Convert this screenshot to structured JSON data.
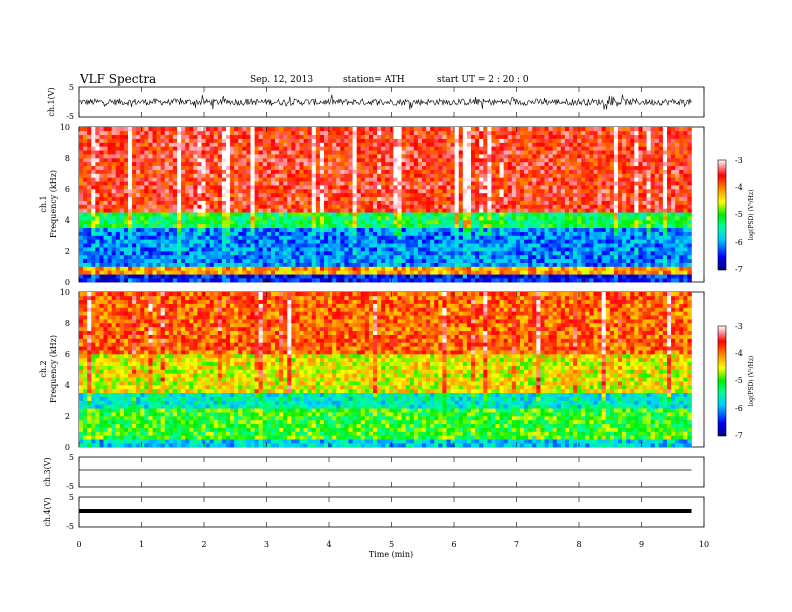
{
  "header": {
    "title": "VLF  Spectra",
    "date": "Sep. 12, 2013",
    "station": "station= ATH",
    "start": "start  UT  =   2  : 20 : 0"
  },
  "chart_data": [
    {
      "type": "line",
      "title": "",
      "ylabel": "ch.1(V)",
      "ylim": [
        -5,
        5
      ],
      "yticks": [
        "5",
        "-5"
      ],
      "series": [
        {
          "values_description_mean": 0.0,
          "amplitude_range": [
            -2.5,
            2.5
          ],
          "color": "#000000"
        }
      ]
    },
    {
      "type": "heatmap",
      "ylabel_channel": "ch.1",
      "ylabel": "Frequency  (kHz)",
      "ylim": [
        0,
        10
      ],
      "yticks": [
        "0",
        "2",
        "4",
        "6",
        "8",
        "10"
      ],
      "colorbar": {
        "label": "log(PSD) (V²/Hz)",
        "range": [
          -7,
          -3
        ],
        "ticks": [
          "-3",
          "-4",
          "-5",
          "-6",
          "-7"
        ],
        "colors": [
          "#000080",
          "#0000ff",
          "#00ccff",
          "#00ff99",
          "#00ee00",
          "#ffff00",
          "#ff8800",
          "#ff0000",
          "#ffffff"
        ]
      },
      "bands_khz": [
        {
          "from": 0,
          "to": 0.5,
          "log_psd": -6.5
        },
        {
          "from": 0.5,
          "to": 1,
          "log_psd": -4.2
        },
        {
          "from": 1,
          "to": 3.5,
          "log_psd": -6.1
        },
        {
          "from": 3.5,
          "to": 4.5,
          "log_psd": -5.2
        },
        {
          "from": 4.5,
          "to": 10,
          "log_psd": -3.6
        }
      ]
    },
    {
      "type": "heatmap",
      "ylabel_channel": "ch.2",
      "ylabel": "Frequency  (kHz)",
      "ylim": [
        0,
        10
      ],
      "yticks": [
        "0",
        "2",
        "4",
        "6",
        "8",
        "10"
      ],
      "colorbar": {
        "label": "log(PSD) (V²/Hz)",
        "range": [
          -7,
          -3
        ],
        "ticks": [
          "-3",
          "-4",
          "-5",
          "-6",
          "-7"
        ],
        "colors": [
          "#000080",
          "#0000ff",
          "#00ccff",
          "#00ff99",
          "#00ee00",
          "#ffff00",
          "#ff8800",
          "#ff0000",
          "#ffffff"
        ]
      },
      "bands_khz": [
        {
          "from": 0,
          "to": 0.5,
          "log_psd": -5.8
        },
        {
          "from": 0.5,
          "to": 2.5,
          "log_psd": -5.0
        },
        {
          "from": 2.5,
          "to": 3.5,
          "log_psd": -5.6
        },
        {
          "from": 3.5,
          "to": 6,
          "log_psd": -4.5
        },
        {
          "from": 6,
          "to": 10,
          "log_psd": -3.9
        }
      ]
    },
    {
      "type": "line",
      "ylabel": "ch.3(V)",
      "ylim": [
        -5,
        5
      ],
      "yticks": [
        "5",
        "-5"
      ],
      "series": [
        {
          "level": 0.0,
          "color": "#000000"
        }
      ]
    },
    {
      "type": "line",
      "ylabel": "ch.4(V)",
      "ylim": [
        -5,
        5
      ],
      "yticks": [
        "5",
        "-5"
      ],
      "series": [
        {
          "level": 0.0,
          "color": "#000000"
        }
      ]
    }
  ],
  "x_axis": {
    "label": "Time  (min)",
    "range": [
      0,
      10
    ],
    "ticks": [
      "0",
      "1",
      "2",
      "3",
      "4",
      "5",
      "6",
      "7",
      "8",
      "9",
      "10"
    ],
    "data_end_min": 9.8
  }
}
